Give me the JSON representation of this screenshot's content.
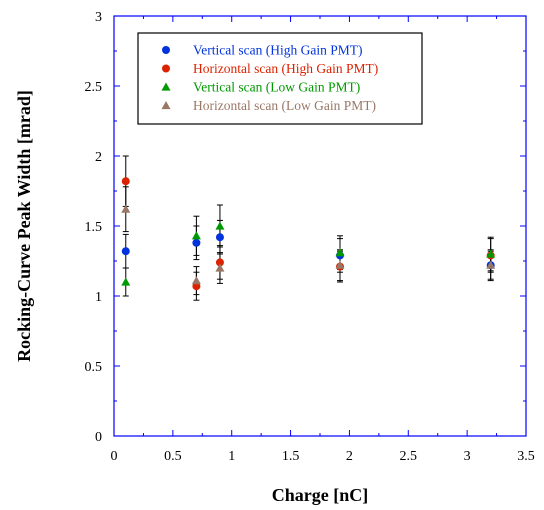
{
  "chart_data": {
    "type": "scatter",
    "title": "",
    "xlabel": "Charge [nC]",
    "ylabel": "Rocking-Curve Peak Width [mrad]",
    "xlim": [
      0,
      3.5
    ],
    "ylim": [
      0,
      3
    ],
    "x_ticks": [
      0,
      0.5,
      1,
      1.5,
      2,
      2.5,
      3,
      3.5
    ],
    "y_ticks": [
      0,
      0.5,
      1,
      1.5,
      2,
      2.5,
      3
    ],
    "x_tick_labels": [
      "0",
      "0.5",
      "1",
      "1.5",
      "2",
      "2.5",
      "3",
      "3.5"
    ],
    "y_tick_labels": [
      "0",
      "0.5",
      "1",
      "1.5",
      "2",
      "2.5",
      "3"
    ],
    "grid": false,
    "frame_color": "#0000ff",
    "legend_position": "top-left inside",
    "series": [
      {
        "name": "Vertical scan (High Gain PMT)",
        "marker": "circle",
        "color": "#0033dd",
        "x": [
          0.1,
          0.7,
          0.9,
          1.92,
          3.2
        ],
        "y": [
          1.32,
          1.38,
          1.42,
          1.29,
          1.22
        ],
        "err": [
          0.12,
          0.12,
          0.12,
          0.12,
          0.1
        ]
      },
      {
        "name": "Horizontal scan (High Gain PMT)",
        "marker": "circle",
        "color": "#dd2200",
        "x": [
          0.1,
          0.7,
          0.9,
          1.92,
          3.2
        ],
        "y": [
          1.82,
          1.07,
          1.24,
          1.21,
          1.29
        ],
        "err": [
          0.18,
          0.1,
          0.12,
          0.11,
          0.12
        ]
      },
      {
        "name": "Vertical scan (Low Gain PMT)",
        "marker": "triangle",
        "color": "#009900",
        "x": [
          0.1,
          0.7,
          0.9,
          1.92,
          3.2
        ],
        "y": [
          1.1,
          1.43,
          1.5,
          1.31,
          1.3
        ],
        "err": [
          0.1,
          0.14,
          0.15,
          0.12,
          0.12
        ]
      },
      {
        "name": "Horizontal scan (Low Gain PMT)",
        "marker": "triangle",
        "color": "#997766",
        "x": [
          0.1,
          0.7,
          0.9,
          1.92,
          3.2
        ],
        "y": [
          1.62,
          1.11,
          1.2,
          1.22,
          1.22
        ],
        "err": [
          0.16,
          0.1,
          0.11,
          0.11,
          0.11
        ]
      }
    ]
  }
}
